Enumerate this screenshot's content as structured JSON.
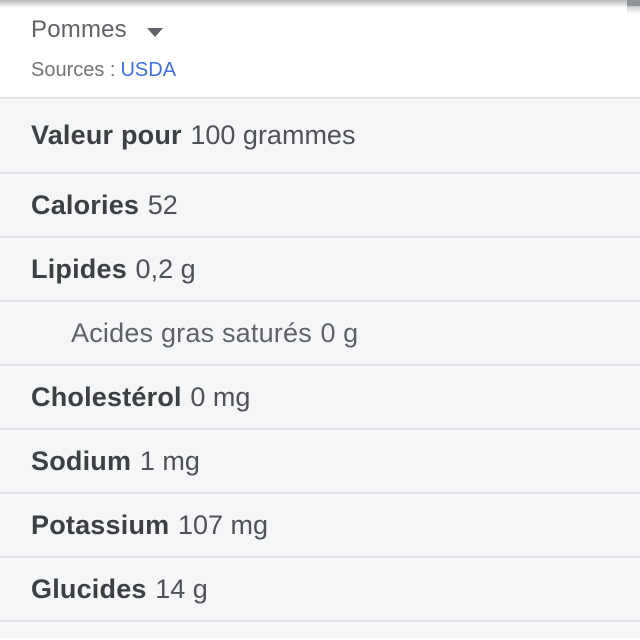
{
  "header": {
    "title": "Pommes",
    "dropdown_icon": "chevron-down-icon",
    "sources_label": "Sources :",
    "source_link": "USDA"
  },
  "table": {
    "serving_unit": "grammes",
    "rows": [
      {
        "label": "Valeur pour",
        "value": "100 grammes",
        "indent": false,
        "bold": true
      },
      {
        "label": "Calories",
        "value": "52",
        "indent": false,
        "bold": true
      },
      {
        "label": "Lipides",
        "value": "0,2 g",
        "indent": false,
        "bold": true
      },
      {
        "label": "Acides gras saturés",
        "value": "0 g",
        "indent": true,
        "bold": false
      },
      {
        "label": "Cholestérol",
        "value": "0 mg",
        "indent": false,
        "bold": true
      },
      {
        "label": "Sodium",
        "value": "1 mg",
        "indent": false,
        "bold": true
      },
      {
        "label": "Potassium",
        "value": "107 mg",
        "indent": false,
        "bold": true
      },
      {
        "label": "Glucides",
        "value": "14 g",
        "indent": false,
        "bold": true
      }
    ]
  },
  "colors": {
    "link_blue": "#3e70dd",
    "row_background": "#f5f6f7",
    "divider": "#e1e3e7",
    "label_text": "#3c4043",
    "value_text": "#4f5256",
    "muted_text": "#70757a",
    "title_text": "#5f6368"
  }
}
